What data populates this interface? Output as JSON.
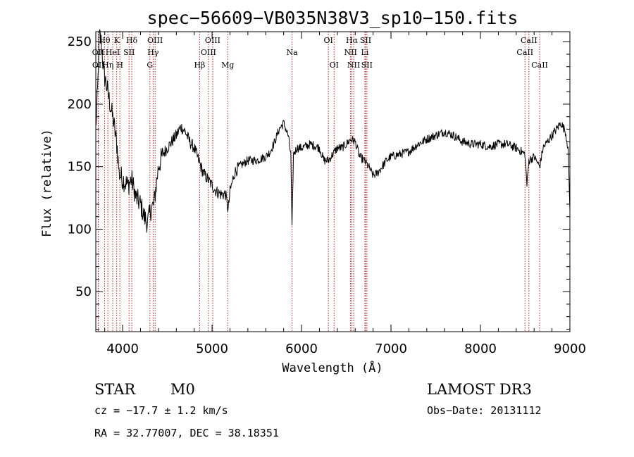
{
  "chart_data": {
    "type": "line",
    "title": "spec−56609−VB035N38V3_sp10−150.fits",
    "xlabel": "Wavelength (Å)",
    "ylabel": "Flux (relative)",
    "xlim": [
      3700,
      9000
    ],
    "ylim": [
      18,
      258
    ],
    "x_ticks": [
      4000,
      5000,
      6000,
      7000,
      8000,
      9000
    ],
    "x_tick_labels": [
      "4000",
      "5000",
      "6000",
      "7000",
      "8000",
      "9000"
    ],
    "y_ticks": [
      50,
      100,
      150,
      200,
      250
    ],
    "y_tick_labels": [
      "50",
      "100",
      "150",
      "200",
      "250"
    ],
    "grid": false,
    "series_color": "#000000",
    "line_marker_color": "#b22222",
    "spectrum_keypoints": [
      [
        3700,
        180
      ],
      [
        3720,
        210
      ],
      [
        3740,
        255
      ],
      [
        3760,
        250
      ],
      [
        3790,
        225
      ],
      [
        3820,
        215
      ],
      [
        3860,
        200
      ],
      [
        3900,
        185
      ],
      [
        3940,
        165
      ],
      [
        3960,
        145
      ],
      [
        4000,
        140
      ],
      [
        4060,
        135
      ],
      [
        4100,
        140
      ],
      [
        4150,
        125
      ],
      [
        4200,
        120
      ],
      [
        4240,
        110
      ],
      [
        4280,
        105
      ],
      [
        4310,
        115
      ],
      [
        4350,
        120
      ],
      [
        4400,
        150
      ],
      [
        4450,
        160
      ],
      [
        4500,
        165
      ],
      [
        4550,
        170
      ],
      [
        4600,
        175
      ],
      [
        4650,
        182
      ],
      [
        4700,
        178
      ],
      [
        4750,
        170
      ],
      [
        4800,
        165
      ],
      [
        4850,
        155
      ],
      [
        4900,
        145
      ],
      [
        4950,
        140
      ],
      [
        5000,
        135
      ],
      [
        5050,
        130
      ],
      [
        5100,
        128
      ],
      [
        5150,
        128
      ],
      [
        5180,
        115
      ],
      [
        5200,
        130
      ],
      [
        5250,
        145
      ],
      [
        5300,
        150
      ],
      [
        5400,
        155
      ],
      [
        5500,
        155
      ],
      [
        5600,
        158
      ],
      [
        5650,
        162
      ],
      [
        5700,
        170
      ],
      [
        5750,
        180
      ],
      [
        5800,
        185
      ],
      [
        5850,
        175
      ],
      [
        5880,
        160
      ],
      [
        5893,
        100
      ],
      [
        5910,
        160
      ],
      [
        5950,
        165
      ],
      [
        6000,
        165
      ],
      [
        6100,
        168
      ],
      [
        6200,
        165
      ],
      [
        6250,
        155
      ],
      [
        6300,
        155
      ],
      [
        6350,
        160
      ],
      [
        6400,
        165
      ],
      [
        6450,
        165
      ],
      [
        6500,
        168
      ],
      [
        6550,
        172
      ],
      [
        6600,
        170
      ],
      [
        6650,
        158
      ],
      [
        6700,
        155
      ],
      [
        6750,
        150
      ],
      [
        6800,
        143
      ],
      [
        6850,
        145
      ],
      [
        6900,
        150
      ],
      [
        6950,
        155
      ],
      [
        7000,
        158
      ],
      [
        7100,
        160
      ],
      [
        7200,
        162
      ],
      [
        7300,
        168
      ],
      [
        7400,
        172
      ],
      [
        7500,
        175
      ],
      [
        7600,
        178
      ],
      [
        7700,
        175
      ],
      [
        7800,
        170
      ],
      [
        7900,
        168
      ],
      [
        8000,
        168
      ],
      [
        8100,
        166
      ],
      [
        8200,
        168
      ],
      [
        8300,
        168
      ],
      [
        8400,
        165
      ],
      [
        8498,
        160
      ],
      [
        8520,
        135
      ],
      [
        8542,
        155
      ],
      [
        8600,
        158
      ],
      [
        8662,
        150
      ],
      [
        8700,
        165
      ],
      [
        8750,
        170
      ],
      [
        8800,
        175
      ],
      [
        8850,
        180
      ],
      [
        8900,
        185
      ],
      [
        8950,
        178
      ],
      [
        8980,
        165
      ],
      [
        9000,
        115
      ]
    ],
    "line_markers": [
      {
        "name": "Hθ",
        "wavelength": 3798,
        "row": 1
      },
      {
        "name": "OII",
        "wavelength": 3727,
        "row": 2
      },
      {
        "name": "OII",
        "wavelength": 3729,
        "row": 3
      },
      {
        "name": "HeI",
        "wavelength": 3889,
        "row": 2
      },
      {
        "name": "Hη",
        "wavelength": 3835,
        "row": 3
      },
      {
        "name": "K",
        "wavelength": 3934,
        "row": 1
      },
      {
        "name": "SII",
        "wavelength": 4072,
        "row": 2
      },
      {
        "name": "H",
        "wavelength": 3969,
        "row": 3
      },
      {
        "name": "Hδ",
        "wavelength": 4102,
        "row": 1
      },
      {
        "name": "OIII",
        "wavelength": 4363,
        "row": 1
      },
      {
        "name": "Hγ",
        "wavelength": 4341,
        "row": 2
      },
      {
        "name": "G",
        "wavelength": 4305,
        "row": 3
      },
      {
        "name": "Hβ",
        "wavelength": 4861,
        "row": 3
      },
      {
        "name": "OIII",
        "wavelength": 5007,
        "row": 1
      },
      {
        "name": "OIII",
        "wavelength": 4959,
        "row": 2
      },
      {
        "name": "Mg",
        "wavelength": 5175,
        "row": 3
      },
      {
        "name": "Na",
        "wavelength": 5894,
        "row": 2
      },
      {
        "name": "OI",
        "wavelength": 6300,
        "row": 1
      },
      {
        "name": "OI",
        "wavelength": 6364,
        "row": 3
      },
      {
        "name": "Hα",
        "wavelength": 6563,
        "row": 1
      },
      {
        "name": "NII",
        "wavelength": 6548,
        "row": 2
      },
      {
        "name": "NII",
        "wavelength": 6583,
        "row": 3
      },
      {
        "name": "SII",
        "wavelength": 6716,
        "row": 1
      },
      {
        "name": "Li",
        "wavelength": 6708,
        "row": 2
      },
      {
        "name": "SII",
        "wavelength": 6731,
        "row": 3
      },
      {
        "name": "CaII",
        "wavelength": 8542,
        "row": 1
      },
      {
        "name": "CaII",
        "wavelength": 8498,
        "row": 2
      },
      {
        "name": "CaII",
        "wavelength": 8662,
        "row": 3
      }
    ]
  },
  "info": {
    "object_class": "STAR",
    "subclass": "M0",
    "survey": "LAMOST DR3",
    "redshift": "cz = −17.7 ± 1.2 km/s",
    "obs_date": "Obs−Date: 20131112",
    "coords": "RA =  32.77007, DEC =  38.18351"
  }
}
